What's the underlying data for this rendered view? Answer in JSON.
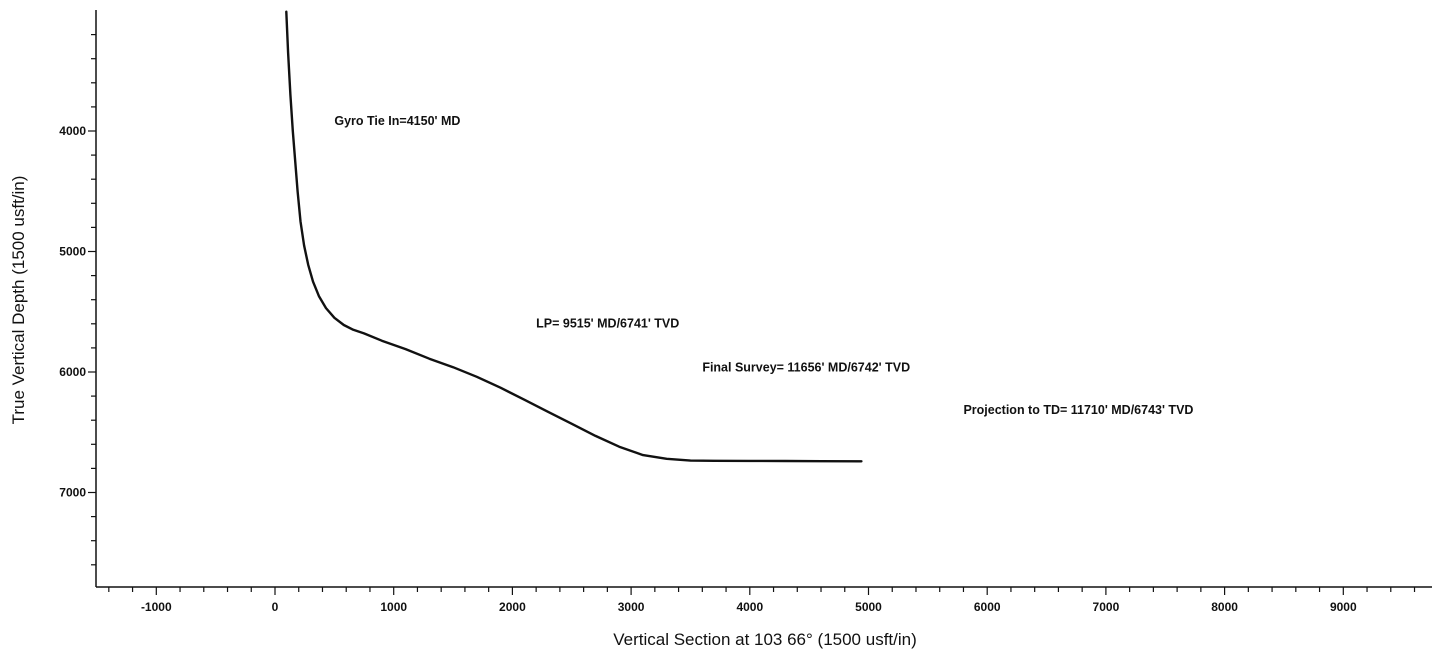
{
  "chart_data": {
    "type": "line",
    "xlabel": "Vertical Section at 103 66° (1500 usft/in)",
    "ylabel": "True Vertical Depth (1500 usft/in)",
    "xlim": [
      -1500,
      9900
    ],
    "ylim": [
      3000,
      7800
    ],
    "y_inverted": true,
    "x_ticks": [
      -1000,
      0,
      1000,
      2000,
      3000,
      4000,
      5000,
      6000,
      7000,
      8000,
      9000
    ],
    "y_ticks": [
      4000,
      5000,
      6000,
      7000
    ],
    "grid": false,
    "series": [
      {
        "x": [
          95,
          110,
          130,
          150,
          170,
          190,
          215,
          245,
          280,
          320,
          370,
          430,
          500,
          580,
          660,
          750,
          900,
          1100,
          1300,
          1500,
          1700,
          1900,
          2100,
          2300,
          2500,
          2700,
          2900,
          3100,
          3300,
          3500,
          3700,
          4000,
          4300,
          4600,
          4940
        ],
        "y": [
          3010,
          3350,
          3700,
          4000,
          4250,
          4500,
          4750,
          4950,
          5110,
          5250,
          5370,
          5470,
          5550,
          5610,
          5650,
          5680,
          5740,
          5810,
          5890,
          5960,
          6040,
          6130,
          6230,
          6330,
          6430,
          6530,
          6620,
          6690,
          6720,
          6735,
          6737,
          6738,
          6739,
          6740,
          6741
        ]
      }
    ],
    "annotations": [
      {
        "text": "Gyro Tie In=4150' MD",
        "x": 500,
        "y": 3950
      },
      {
        "text": "LP= 9515' MD/6741' TVD",
        "x": 2200,
        "y": 5630
      },
      {
        "text": "Final Survey= 11656' MD/6742' TVD",
        "x": 3600,
        "y": 5995
      },
      {
        "text": "Projection to TD= 11710' MD/6743' TVD",
        "x": 5800,
        "y": 6350
      }
    ]
  }
}
